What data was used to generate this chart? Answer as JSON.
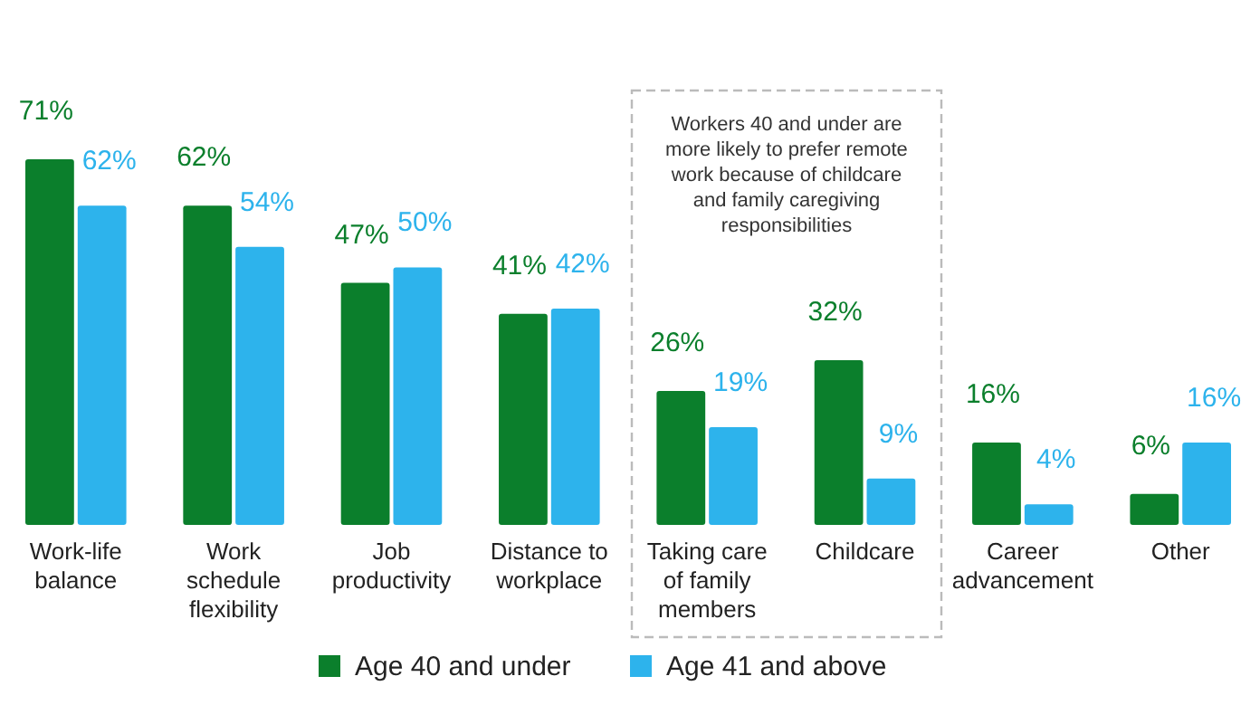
{
  "chart_data": {
    "type": "bar",
    "categories": [
      "Work-life balance",
      "Work schedule flexibility",
      "Job productivity",
      "Distance to workplace",
      "Taking care of family members",
      "Childcare",
      "Career advancement",
      "Other"
    ],
    "series": [
      {
        "name": "Age 40 and under",
        "color": "#0b7f2c",
        "values": [
          71,
          62,
          47,
          41,
          26,
          32,
          16,
          6
        ],
        "value_labels": [
          "71%",
          "62%",
          "47%",
          "41%",
          "26%",
          "32%",
          "16%",
          "6%"
        ]
      },
      {
        "name": "Age 41 and above",
        "color": "#2db3ec",
        "values": [
          62,
          54,
          50,
          42,
          19,
          9,
          4,
          16
        ],
        "value_labels": [
          "62%",
          "54%",
          "50%",
          "42%",
          "19%",
          "9%",
          "4%",
          "16%"
        ]
      }
    ],
    "annotations": [
      "Workers 40 and under are more likely to prefer remote work because of childcare and family caregiving responsibilities"
    ],
    "legend": "bottom"
  }
}
